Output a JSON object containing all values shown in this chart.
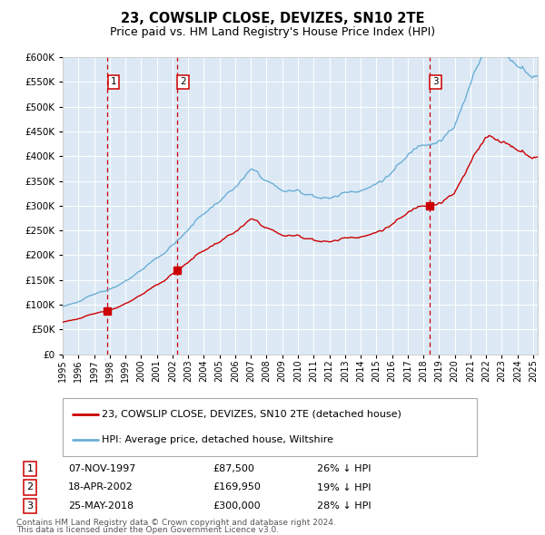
{
  "title": "23, COWSLIP CLOSE, DEVIZES, SN10 2TE",
  "subtitle": "Price paid vs. HM Land Registry's House Price Index (HPI)",
  "legend_line1": "23, COWSLIP CLOSE, DEVIZES, SN10 2TE (detached house)",
  "legend_line2": "HPI: Average price, detached house, Wiltshire",
  "footnote1": "Contains HM Land Registry data © Crown copyright and database right 2024.",
  "footnote2": "This data is licensed under the Open Government Licence v3.0.",
  "transactions": [
    {
      "num": 1,
      "date": "07-NOV-1997",
      "price": 87500,
      "price_str": "£87,500",
      "pct": "26% ↓ HPI"
    },
    {
      "num": 2,
      "date": "18-APR-2002",
      "price": 169950,
      "price_str": "£169,950",
      "pct": "19% ↓ HPI"
    },
    {
      "num": 3,
      "date": "25-MAY-2018",
      "price": 300000,
      "price_str": "£300,000",
      "pct": "28% ↓ HPI"
    }
  ],
  "sale_dates_decimal": [
    1997.86,
    2002.3,
    2018.4
  ],
  "sale_prices": [
    87500,
    169950,
    300000
  ],
  "hpi_color": "#6baed6",
  "price_color": "#cc0000",
  "vline_color": "#cc0000",
  "bg_color": "#dce9f5",
  "grid_color": "#ffffff",
  "ylim": [
    0,
    600000
  ],
  "yticks": [
    0,
    50000,
    100000,
    150000,
    200000,
    250000,
    300000,
    350000,
    400000,
    450000,
    500000,
    550000,
    600000
  ],
  "xlim": [
    1995,
    2025.3
  ],
  "xtick_years": [
    1995,
    1996,
    1997,
    1998,
    1999,
    2000,
    2001,
    2002,
    2003,
    2004,
    2005,
    2006,
    2007,
    2008,
    2009,
    2010,
    2011,
    2012,
    2013,
    2014,
    2015,
    2016,
    2017,
    2018,
    2019,
    2020,
    2021,
    2022,
    2023,
    2024,
    2025
  ]
}
